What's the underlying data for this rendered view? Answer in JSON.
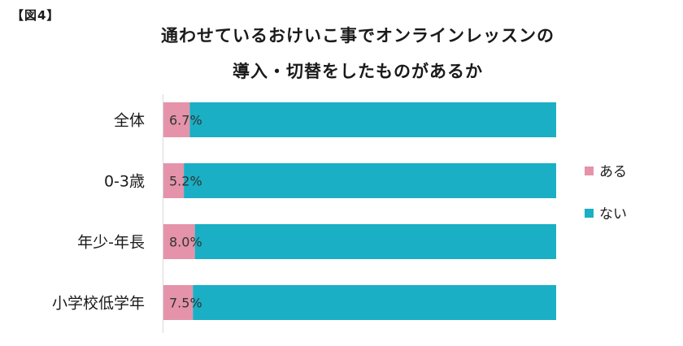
{
  "figure_label": "【図4】",
  "title_line1": "通わせているおけいこ事でオンラインレッスンの",
  "title_line2": "導入・切替をしたものがあるか",
  "colors": {
    "aru": "#e593aa",
    "nai": "#1aafc4",
    "axis": "#d9d9d9"
  },
  "chart_data": {
    "type": "bar",
    "orientation": "horizontal",
    "stacked": true,
    "percent": true,
    "categories": [
      "全体",
      "0-3歳",
      "年少-年長",
      "小学校低学年"
    ],
    "series": [
      {
        "name": "ある",
        "values": [
          6.7,
          5.2,
          8.0,
          7.5
        ],
        "data_labels": [
          "6.7%",
          "5.2%",
          "8.0%",
          "7.5%"
        ]
      },
      {
        "name": "ない",
        "values": [
          93.3,
          94.8,
          92.0,
          92.5
        ]
      }
    ],
    "xlim": [
      0,
      100
    ],
    "legend_position": "right",
    "title": "通わせているおけいこ事でオンラインレッスンの導入・切替をしたものがあるか"
  }
}
